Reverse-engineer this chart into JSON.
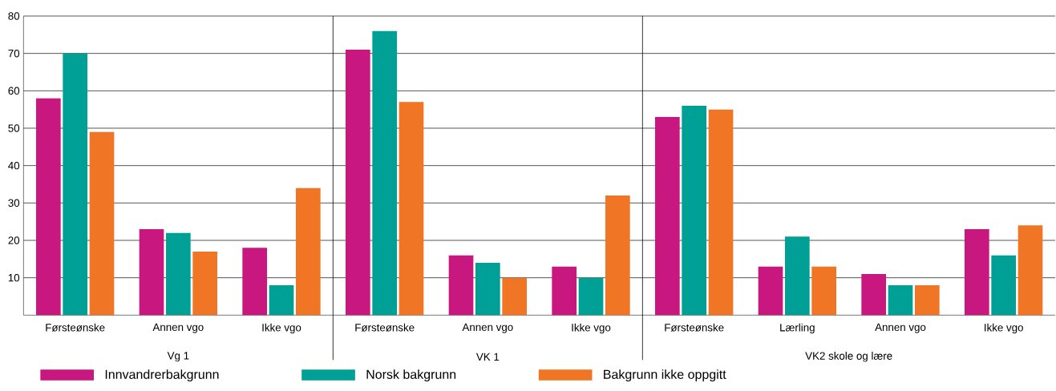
{
  "chart_data": {
    "type": "bar",
    "categories": [
      "Førsteønske",
      "Annen vgo",
      "Ikke vgo",
      "Førsteønske",
      "Annen vgo",
      "Ikke vgo",
      "Førsteønske",
      "Lærling",
      "Annen vgo",
      "Ikke vgo"
    ],
    "series": [
      {
        "name": "Innvandrerbakgrunn",
        "color": "#c8177f",
        "values": [
          58,
          23,
          18,
          71,
          16,
          13,
          53,
          13,
          11,
          23
        ]
      },
      {
        "name": "Norsk bakgrunn",
        "color": "#00a096",
        "values": [
          70,
          22,
          8,
          76,
          14,
          10,
          56,
          21,
          8,
          16
        ]
      },
      {
        "name": "Bakgrunn ikke oppgitt",
        "color": "#f07524",
        "values": [
          49,
          17,
          34,
          57,
          10,
          32,
          55,
          13,
          8,
          24
        ]
      }
    ],
    "ylim": [
      0,
      80
    ],
    "yticks": [
      10,
      20,
      30,
      40,
      50,
      60,
      70,
      80
    ],
    "annotations": [
      "Vg 1",
      "VK 1",
      "VK2 skole og lære"
    ],
    "grid": "y",
    "legend": "bottom"
  }
}
